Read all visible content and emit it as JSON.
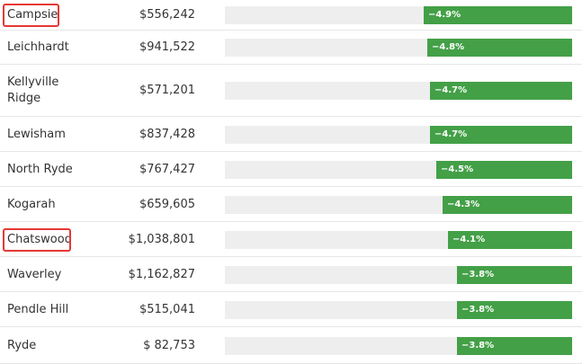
{
  "rows": [
    {
      "suburb": "Campsie",
      "price": "$556,242",
      "change_label": "−4.9%",
      "change_pct": -4.9,
      "highlighted": true
    },
    {
      "suburb": "Leichhardt",
      "price": "$941,522",
      "change_label": "−4.8%",
      "change_pct": -4.8,
      "highlighted": false
    },
    {
      "suburb": "Kellyville\nRidge",
      "price": "$571,201",
      "change_label": "−4.7%",
      "change_pct": -4.7,
      "highlighted": false
    },
    {
      "suburb": "Lewisham",
      "price": "$837,428",
      "change_label": "−4.7%",
      "change_pct": -4.7,
      "highlighted": false
    },
    {
      "suburb": "North Ryde",
      "price": "$767,427",
      "change_label": "−4.5%",
      "change_pct": -4.5,
      "highlighted": false
    },
    {
      "suburb": "Kogarah",
      "price": "$659,605",
      "change_label": "−4.3%",
      "change_pct": -4.3,
      "highlighted": false
    },
    {
      "suburb": "Chatswood",
      "price": "$1,038,801",
      "change_label": "−4.1%",
      "change_pct": -4.1,
      "highlighted": true
    },
    {
      "suburb": "Waverley",
      "price": "$1,162,827",
      "change_label": "−3.8%",
      "change_pct": -3.8,
      "highlighted": false
    },
    {
      "suburb": "Pendle Hill",
      "price": "$515,041",
      "change_label": "−3.8%",
      "change_pct": -3.8,
      "highlighted": false
    },
    {
      "suburb": "Ryde",
      "price": "$ 82,753",
      "change_label": "−3.8%",
      "change_pct": -3.8,
      "highlighted": false
    }
  ],
  "colors": {
    "bar_fill": "#43a047",
    "bar_track": "#eeeeee",
    "highlight_border": "#e53935"
  }
}
